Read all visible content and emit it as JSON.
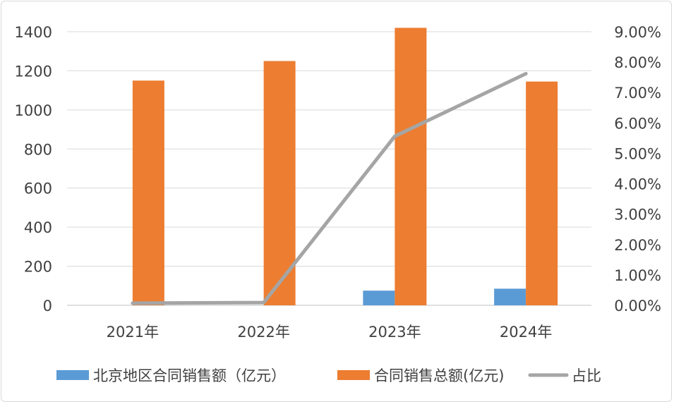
{
  "chart_data": {
    "type": "bar",
    "categories": [
      "2021年",
      "2022年",
      "2023年",
      "2024年"
    ],
    "series": [
      {
        "name": "北京地区合同销售额（亿元）",
        "type": "bar",
        "axis": "left",
        "color": "#5B9BD5",
        "values": [
          0,
          0,
          75,
          85
        ]
      },
      {
        "name": "合同销售总额(亿元)",
        "type": "bar",
        "axis": "left",
        "color": "#ED7D31",
        "values": [
          1150,
          1250,
          1420,
          1145
        ]
      },
      {
        "name": "占比",
        "type": "line",
        "axis": "right",
        "color": "#A5A5A5",
        "values": [
          0.0007,
          0.0009,
          0.0556,
          0.0762
        ]
      }
    ],
    "ylim": [
      0,
      1400
    ],
    "y_ticks": [
      "0",
      "200",
      "400",
      "600",
      "800",
      "1000",
      "1200",
      "1400"
    ],
    "y2lim": [
      0,
      0.09
    ],
    "y2_ticks": [
      "0.00%",
      "1.00%",
      "2.00%",
      "3.00%",
      "4.00%",
      "5.00%",
      "6.00%",
      "7.00%",
      "8.00%",
      "9.00%"
    ],
    "grid": true,
    "legend_position": "bottom"
  }
}
